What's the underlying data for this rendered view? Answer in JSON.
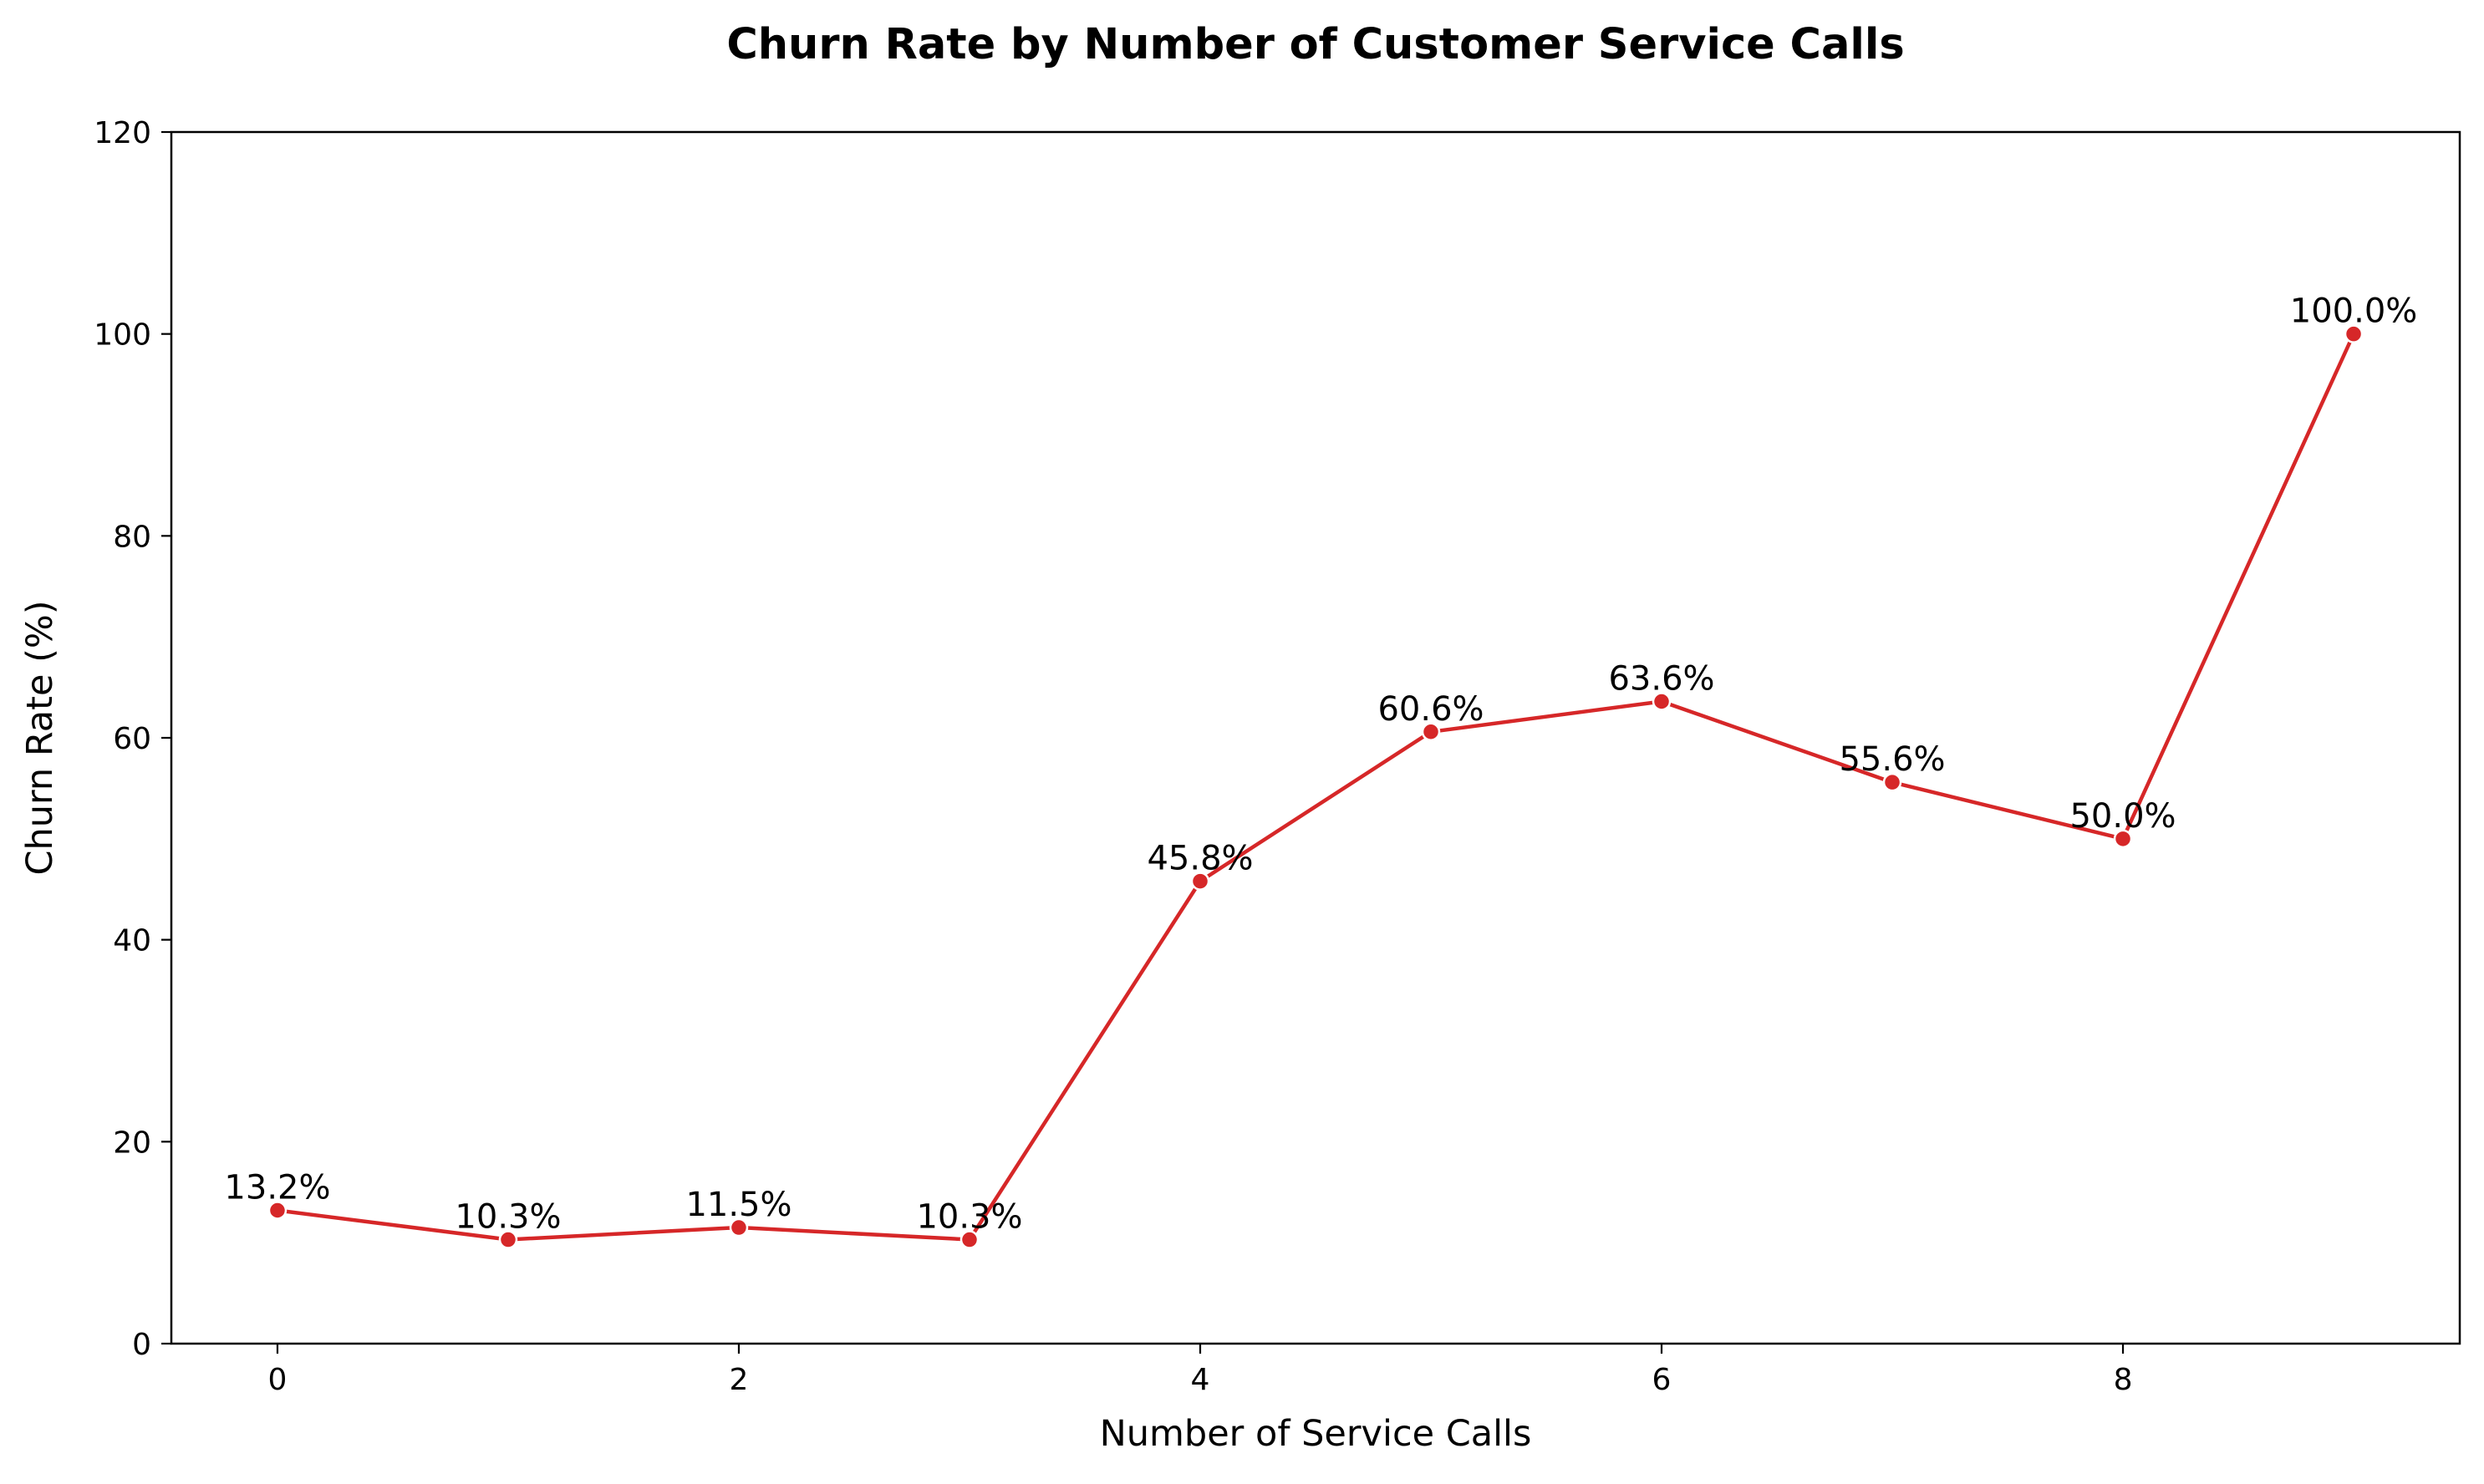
{
  "chart_data": {
    "type": "line",
    "title": "Churn Rate by Number of Customer Service Calls",
    "xlabel": "Number of Service Calls",
    "ylabel": "Churn Rate (%)",
    "xlim": [
      -0.46,
      9.46
    ],
    "ylim": [
      0,
      120
    ],
    "xticks": [
      0,
      2,
      4,
      6,
      8
    ],
    "yticks": [
      0,
      20,
      40,
      60,
      80,
      100,
      120
    ],
    "grid": false,
    "series": [
      {
        "color": "#d62728",
        "x": [
          0,
          1,
          2,
          3,
          4,
          5,
          6,
          7,
          8,
          9
        ],
        "y": [
          13.2,
          10.3,
          11.5,
          10.3,
          45.8,
          60.6,
          63.6,
          55.6,
          50.0,
          100.0
        ],
        "labels": [
          "13.2%",
          "10.3%",
          "11.5%",
          "10.3%",
          "45.8%",
          "60.6%",
          "63.6%",
          "55.6%",
          "50.0%",
          "100.0%"
        ]
      }
    ]
  }
}
